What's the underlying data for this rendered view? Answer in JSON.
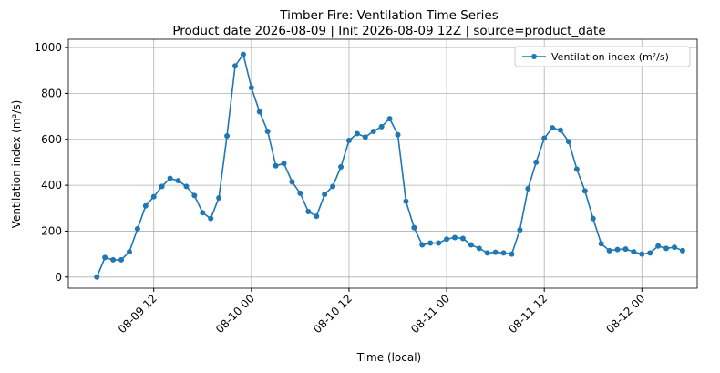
{
  "chart_data": {
    "type": "line",
    "title": "Timber Fire: Ventilation Time Series",
    "subtitle": "Product date 2026-08-09 | Init 2026-08-09 12Z | source=product_date",
    "x_label": "Time (local)",
    "y_label": "Ventilation index (m²/s)",
    "x": [
      "08-09 05",
      "08-09 06",
      "08-09 07",
      "08-09 08",
      "08-09 09",
      "08-09 10",
      "08-09 11",
      "08-09 12",
      "08-09 13",
      "08-09 14",
      "08-09 15",
      "08-09 16",
      "08-09 17",
      "08-09 18",
      "08-09 19",
      "08-09 20",
      "08-09 21",
      "08-09 22",
      "08-09 23",
      "08-10 00",
      "08-10 01",
      "08-10 02",
      "08-10 03",
      "08-10 04",
      "08-10 05",
      "08-10 06",
      "08-10 07",
      "08-10 08",
      "08-10 09",
      "08-10 10",
      "08-10 11",
      "08-10 12",
      "08-10 13",
      "08-10 14",
      "08-10 15",
      "08-10 16",
      "08-10 17",
      "08-10 18",
      "08-10 19",
      "08-10 20",
      "08-10 21",
      "08-10 22",
      "08-10 23",
      "08-11 00",
      "08-11 01",
      "08-11 02",
      "08-11 03",
      "08-11 04",
      "08-11 05",
      "08-11 06",
      "08-11 07",
      "08-11 08",
      "08-11 09",
      "08-11 10",
      "08-11 11",
      "08-11 12",
      "08-11 13",
      "08-11 14",
      "08-11 15",
      "08-11 16",
      "08-11 17",
      "08-11 18",
      "08-11 19",
      "08-11 20",
      "08-11 21",
      "08-11 22",
      "08-11 23",
      "08-12 00",
      "08-12 01",
      "08-12 02",
      "08-12 03",
      "08-12 04",
      "08-12 05"
    ],
    "series": [
      {
        "name": "Ventilation index (m²/s)",
        "color": "#1f77b4",
        "values": [
          0,
          85,
          75,
          75,
          110,
          210,
          310,
          350,
          395,
          430,
          420,
          395,
          355,
          280,
          255,
          345,
          615,
          920,
          970,
          825,
          720,
          635,
          485,
          495,
          415,
          365,
          285,
          265,
          360,
          395,
          480,
          595,
          625,
          610,
          635,
          655,
          690,
          620,
          330,
          215,
          140,
          148,
          148,
          165,
          172,
          168,
          140,
          125,
          105,
          108,
          105,
          100,
          205,
          385,
          500,
          605,
          650,
          640,
          590,
          470,
          375,
          255,
          145,
          115,
          120,
          122,
          110,
          100,
          105,
          135,
          125,
          130,
          115
        ]
      }
    ],
    "xlim": [
      "08-09 01:30",
      "08-12 06:48"
    ],
    "xticks": [
      {
        "value": "08-09 12:00",
        "label": "08-09 12"
      },
      {
        "value": "08-10 00:00",
        "label": "08-10 00"
      },
      {
        "value": "08-10 12:00",
        "label": "08-10 12"
      },
      {
        "value": "08-11 00:00",
        "label": "08-11 00"
      },
      {
        "value": "08-11 12:00",
        "label": "08-11 12"
      },
      {
        "value": "08-12 00:00",
        "label": "08-12 00"
      }
    ],
    "ylim": [
      -48.5,
      1036
    ],
    "yticks": [
      0,
      200,
      400,
      600,
      800,
      1000
    ],
    "grid": true,
    "legend": "upper right"
  }
}
